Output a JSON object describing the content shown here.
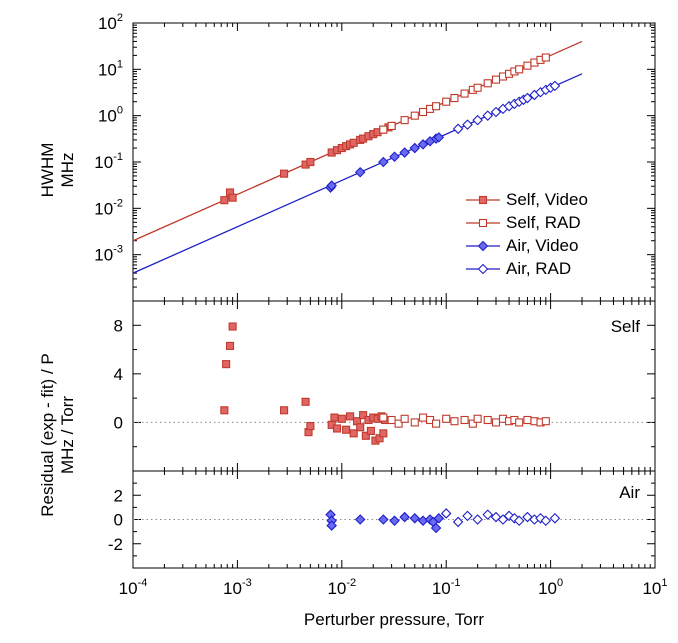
{
  "chart_data": [
    {
      "type": "scatter",
      "panel": "top",
      "xscale": "log",
      "yscale": "log",
      "xlim": [
        0.0001,
        10
      ],
      "ylim": [
        0.0001,
        100
      ],
      "ylabel_lines": [
        "HWHM",
        "MHz"
      ],
      "y_ticks": [
        {
          "base": "10",
          "exp": "2"
        },
        {
          "base": "10",
          "exp": "1"
        },
        {
          "base": "10",
          "exp": "0"
        },
        {
          "base": "10",
          "exp": "-1"
        },
        {
          "base": "10",
          "exp": "-2"
        },
        {
          "base": "10",
          "exp": "-3"
        }
      ],
      "fit_lines": [
        {
          "name": "Self fit",
          "color": "#c0392b",
          "x": [
            0.0001,
            2
          ],
          "y": [
            0.002,
            40
          ]
        },
        {
          "name": "Air fit",
          "color": "#1f1fc8",
          "x": [
            0.0001,
            2
          ],
          "y": [
            0.0004,
            8
          ]
        }
      ],
      "series": [
        {
          "name": "Self, Video",
          "marker": "square-filled",
          "color": "#c0392b",
          "fill": "#e06666",
          "x": [
            0.00075,
            0.00085,
            0.0009,
            0.0028,
            0.0045,
            0.005,
            0.008,
            0.009,
            0.01,
            0.011,
            0.012,
            0.013,
            0.015,
            0.016,
            0.018,
            0.02,
            0.022,
            0.025,
            0.028,
            0.03
          ],
          "y": [
            0.015,
            0.022,
            0.017,
            0.056,
            0.088,
            0.1,
            0.16,
            0.18,
            0.2,
            0.22,
            0.24,
            0.26,
            0.3,
            0.32,
            0.36,
            0.4,
            0.44,
            0.5,
            0.56,
            0.6
          ]
        },
        {
          "name": "Self, RAD",
          "marker": "square-open",
          "color": "#c0392b",
          "fill": "#ffffff",
          "x": [
            0.025,
            0.03,
            0.04,
            0.05,
            0.06,
            0.07,
            0.08,
            0.1,
            0.12,
            0.15,
            0.18,
            0.2,
            0.25,
            0.3,
            0.35,
            0.4,
            0.45,
            0.5,
            0.6,
            0.7,
            0.8,
            0.9
          ],
          "y": [
            0.5,
            0.6,
            0.8,
            1.0,
            1.2,
            1.4,
            1.6,
            2.0,
            2.4,
            3.0,
            3.6,
            4.0,
            5.0,
            6.0,
            7.0,
            8.0,
            9.0,
            10.0,
            12.0,
            14.0,
            16.0,
            18.0
          ]
        },
        {
          "name": "Air, Video",
          "marker": "diamond-filled",
          "color": "#1f1fc8",
          "fill": "#6a6af0",
          "x": [
            0.0078,
            0.008,
            0.015,
            0.025,
            0.032,
            0.04,
            0.05,
            0.06,
            0.07,
            0.08,
            0.085
          ],
          "y": [
            0.028,
            0.031,
            0.06,
            0.1,
            0.13,
            0.16,
            0.2,
            0.24,
            0.28,
            0.32,
            0.34
          ]
        },
        {
          "name": "Air, RAD",
          "marker": "diamond-open",
          "color": "#1f1fc8",
          "fill": "#ffffff",
          "x": [
            0.13,
            0.16,
            0.2,
            0.25,
            0.3,
            0.35,
            0.4,
            0.45,
            0.5,
            0.55,
            0.6,
            0.7,
            0.8,
            0.9,
            1.0,
            1.1
          ],
          "y": [
            0.52,
            0.64,
            0.8,
            1.0,
            1.2,
            1.4,
            1.6,
            1.8,
            2.0,
            2.2,
            2.4,
            2.8,
            3.2,
            3.6,
            4.0,
            4.4
          ]
        }
      ],
      "legend": {
        "placement": "bottom-right",
        "entries": [
          "Self, Video",
          "Self, RAD",
          "Air, Video",
          "Air, RAD"
        ]
      }
    },
    {
      "type": "scatter",
      "panel": "middle",
      "label": "Self",
      "xscale": "log",
      "xlim": [
        0.0001,
        10
      ],
      "ylim": [
        -4,
        10
      ],
      "y_ticks": [
        "8",
        "4",
        "0"
      ],
      "zero_line": true,
      "series": [
        {
          "name": "Self, Video",
          "marker": "square-filled",
          "color": "#c0392b",
          "fill": "#e06666",
          "x": [
            0.00075,
            0.00078,
            0.00085,
            0.0009,
            0.0028,
            0.0045,
            0.0048,
            0.005,
            0.008,
            0.0085,
            0.009,
            0.01,
            0.011,
            0.012,
            0.013,
            0.014,
            0.015,
            0.016,
            0.017,
            0.018,
            0.019,
            0.02,
            0.021,
            0.022,
            0.023,
            0.024,
            0.025,
            0.026
          ],
          "y": [
            1.0,
            4.8,
            6.3,
            7.9,
            1.0,
            1.7,
            -0.8,
            -0.3,
            -0.2,
            0.4,
            -0.5,
            0.3,
            -0.6,
            0.5,
            -0.9,
            0.1,
            -0.4,
            0.6,
            -1.1,
            0.2,
            -0.7,
            0.4,
            -1.5,
            0.3,
            -1.3,
            0.5,
            -0.9,
            0.2
          ]
        },
        {
          "name": "Self, RAD",
          "marker": "square-open",
          "color": "#c0392b",
          "fill": "#ffffff",
          "x": [
            0.025,
            0.03,
            0.035,
            0.04,
            0.05,
            0.06,
            0.07,
            0.08,
            0.1,
            0.12,
            0.15,
            0.18,
            0.2,
            0.25,
            0.3,
            0.35,
            0.4,
            0.45,
            0.5,
            0.6,
            0.7,
            0.8,
            0.9
          ],
          "y": [
            0.4,
            0.2,
            -0.1,
            0.3,
            0.0,
            0.4,
            0.2,
            -0.1,
            0.3,
            0.1,
            0.2,
            -0.1,
            0.3,
            0.2,
            0.0,
            0.3,
            0.1,
            0.2,
            0.0,
            0.2,
            0.1,
            0.0,
            0.1
          ]
        }
      ]
    },
    {
      "type": "scatter",
      "panel": "bottom",
      "label": "Air",
      "xscale": "log",
      "xlim": [
        0.0001,
        10
      ],
      "ylim": [
        -4,
        4
      ],
      "y_ticks": [
        "2",
        "0",
        "-2"
      ],
      "zero_line": true,
      "xlabel": "Perturber pressure, Torr",
      "x_ticks": [
        {
          "base": "10",
          "exp": "-4"
        },
        {
          "base": "10",
          "exp": "-3"
        },
        {
          "base": "10",
          "exp": "-2"
        },
        {
          "base": "10",
          "exp": "-1"
        },
        {
          "base": "10",
          "exp": "0"
        },
        {
          "base": "10",
          "exp": "1"
        }
      ],
      "series": [
        {
          "name": "Air, Video",
          "marker": "diamond-filled",
          "color": "#1f1fc8",
          "fill": "#6a6af0",
          "x": [
            0.0078,
            0.008,
            0.008,
            0.015,
            0.025,
            0.032,
            0.04,
            0.05,
            0.06,
            0.07,
            0.075,
            0.08,
            0.085
          ],
          "y": [
            0.4,
            -0.1,
            -0.5,
            0.0,
            0.0,
            -0.1,
            0.2,
            0.1,
            -0.1,
            0.0,
            -0.2,
            -0.7,
            0.1
          ]
        },
        {
          "name": "Air, RAD",
          "marker": "diamond-open",
          "color": "#1f1fc8",
          "fill": "#ffffff",
          "x": [
            0.1,
            0.13,
            0.16,
            0.2,
            0.25,
            0.3,
            0.35,
            0.4,
            0.45,
            0.5,
            0.6,
            0.7,
            0.8,
            0.9,
            1.1
          ],
          "y": [
            0.5,
            -0.2,
            0.3,
            0.0,
            0.4,
            0.2,
            0.0,
            0.3,
            0.1,
            -0.1,
            0.2,
            0.0,
            0.1,
            -0.1,
            0.1
          ]
        }
      ]
    }
  ],
  "shared_ylabel_lines": [
    "Residual (exp - fit) / P",
    "MHz / Torr"
  ]
}
